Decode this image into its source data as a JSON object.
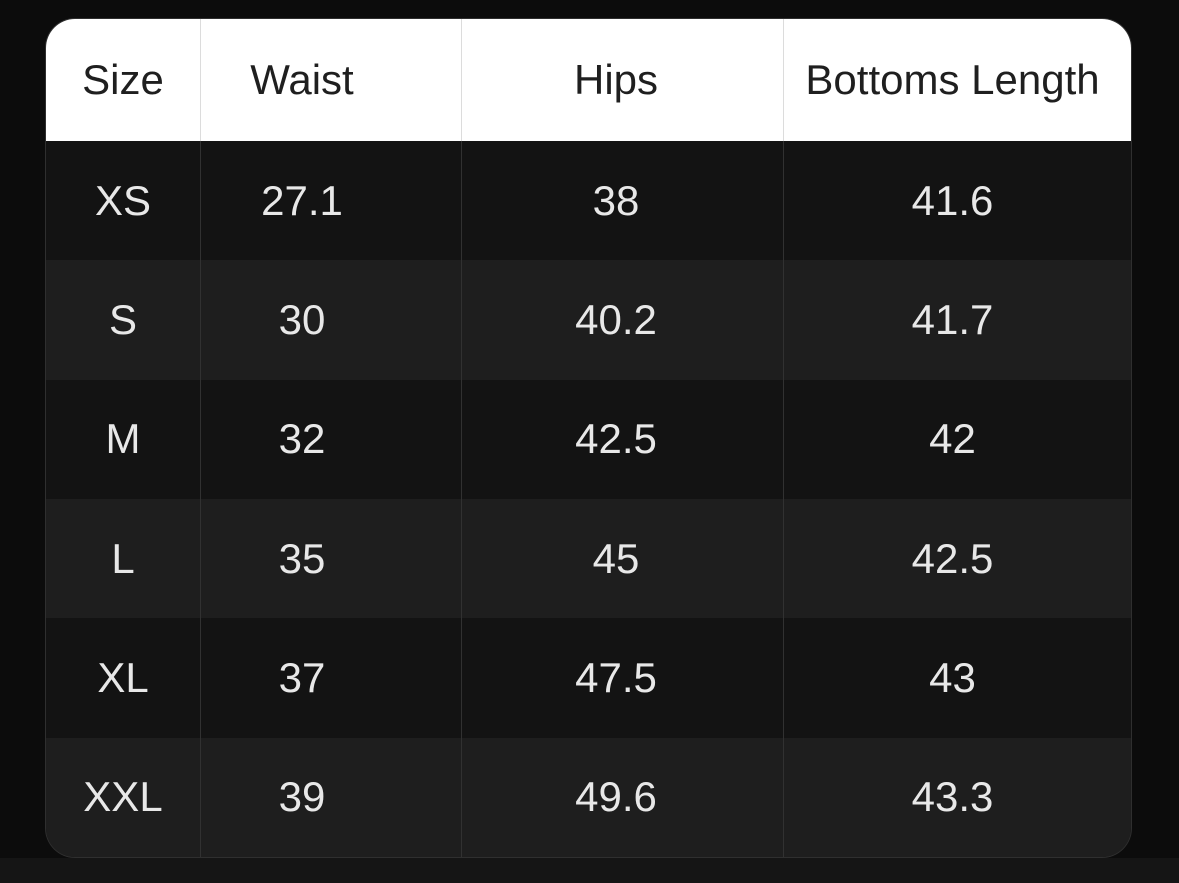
{
  "table": {
    "columns": [
      "Size",
      "Waist",
      "Hips",
      "Bottoms Length"
    ],
    "rows": [
      {
        "cells": [
          "XS",
          "27.1",
          "38",
          "41.6"
        ]
      },
      {
        "cells": [
          "S",
          "30",
          "40.2",
          "41.7"
        ]
      },
      {
        "cells": [
          "M",
          "32",
          "42.5",
          "42"
        ]
      },
      {
        "cells": [
          "L",
          "35",
          "45",
          "42.5"
        ]
      },
      {
        "cells": [
          "XL",
          "37",
          "47.5",
          "43"
        ]
      },
      {
        "cells": [
          "XXL",
          "39",
          "49.6",
          "43.3"
        ]
      }
    ],
    "colors": {
      "page_background": "#0c0c0c",
      "strip_below_table": "#151515",
      "header_background": "#ffffff",
      "header_text": "#1f1f1f",
      "row_dark": "#131313",
      "row_light": "#1e1e1e",
      "body_text": "#e8e8e8",
      "divider_header": "#dcdcdc",
      "divider_body": "#313131"
    }
  },
  "chart_data": {
    "type": "table",
    "title": "",
    "columns": [
      "Size",
      "Waist",
      "Hips",
      "Bottoms Length"
    ],
    "rows": [
      [
        "XS",
        27.1,
        38,
        41.6
      ],
      [
        "S",
        30,
        40.2,
        41.7
      ],
      [
        "M",
        32,
        42.5,
        42
      ],
      [
        "L",
        35,
        45,
        42.5
      ],
      [
        "XL",
        37,
        47.5,
        43
      ],
      [
        "XXL",
        39,
        49.6,
        43.3
      ]
    ]
  }
}
